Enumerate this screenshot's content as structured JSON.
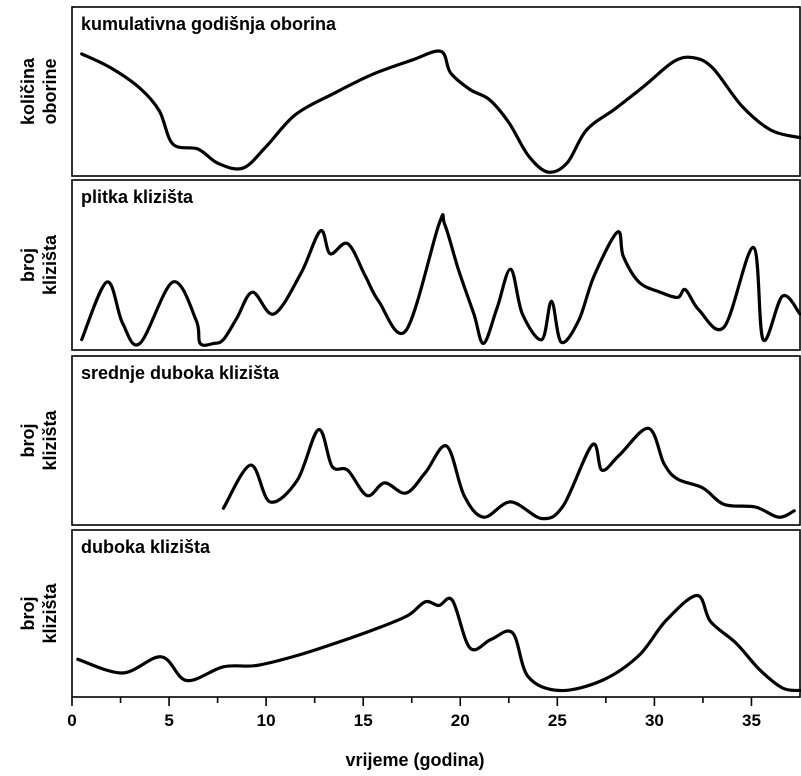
{
  "chart_data": [
    {
      "type": "line",
      "title": "kumulativna godišnja oborina",
      "ylabel": [
        "količina",
        "oborine"
      ],
      "xlim": [
        0,
        37.5
      ],
      "ylim": [
        0,
        1
      ],
      "x": [
        0.5,
        2,
        3.5,
        4.5,
        5.2,
        6.5,
        7.5,
        8.8,
        10,
        11.5,
        13.5,
        15.5,
        17.5,
        19,
        19.5,
        20.5,
        21.5,
        22.5,
        23.5,
        24.5,
        25.5,
        26.5,
        28,
        29.5,
        31,
        32,
        33,
        34.5,
        36,
        37.5
      ],
      "values": [
        0.93,
        0.82,
        0.66,
        0.48,
        0.22,
        0.18,
        0.07,
        0.03,
        0.2,
        0.45,
        0.62,
        0.77,
        0.88,
        0.95,
        0.78,
        0.65,
        0.57,
        0.39,
        0.13,
        0.0,
        0.07,
        0.33,
        0.5,
        0.68,
        0.87,
        0.9,
        0.82,
        0.52,
        0.33,
        0.27
      ]
    },
    {
      "type": "line",
      "title": "plitka klizišta",
      "ylabel": [
        "broj",
        "klizišta"
      ],
      "xlim": [
        0,
        37.5
      ],
      "ylim": [
        0,
        1
      ],
      "x": [
        0.5,
        1.8,
        2.6,
        3.5,
        5.2,
        6.4,
        6.6,
        7.3,
        7.8,
        8.5,
        9.3,
        10.4,
        11.8,
        12.8,
        13.3,
        14.2,
        15.1,
        15.8,
        17.2,
        18.9,
        19.2,
        19.9,
        20.7,
        21.2,
        21.9,
        22.6,
        23.2,
        24.2,
        24.7,
        25.2,
        26.1,
        26.9,
        28.1,
        28.4,
        29.2,
        30.3,
        31.2,
        31.6,
        32.3,
        33.6,
        35.1,
        35.6,
        36.6,
        37.5
      ],
      "values": [
        0.05,
        0.5,
        0.18,
        0.02,
        0.5,
        0.2,
        0.02,
        0.02,
        0.05,
        0.22,
        0.42,
        0.25,
        0.57,
        0.9,
        0.72,
        0.8,
        0.55,
        0.35,
        0.12,
        0.95,
        0.95,
        0.6,
        0.25,
        0.02,
        0.3,
        0.6,
        0.25,
        0.05,
        0.35,
        0.03,
        0.2,
        0.55,
        0.89,
        0.7,
        0.5,
        0.42,
        0.38,
        0.44,
        0.28,
        0.15,
        0.77,
        0.05,
        0.39,
        0.25
      ],
      "note": ""
    },
    {
      "type": "line",
      "title": "srednje duboka klizišta",
      "ylabel": [
        "broj",
        "klizišta"
      ],
      "xlim": [
        0,
        37.5
      ],
      "ylim": [
        0,
        1
      ],
      "x": [
        7.8,
        9.2,
        10.2,
        11.6,
        12.7,
        13.4,
        14.2,
        15.2,
        16.1,
        17.2,
        18.2,
        19.3,
        20.2,
        21.2,
        22.6,
        24.2,
        25.3,
        26.8,
        27.3,
        28.2,
        29.7,
        30.5,
        31.2,
        32.5,
        33.6,
        35.2,
        36.4,
        37.2
      ],
      "values": [
        0.1,
        0.44,
        0.15,
        0.32,
        0.72,
        0.43,
        0.4,
        0.2,
        0.3,
        0.22,
        0.38,
        0.59,
        0.2,
        0.03,
        0.15,
        0.02,
        0.12,
        0.6,
        0.4,
        0.52,
        0.73,
        0.45,
        0.33,
        0.26,
        0.13,
        0.11,
        0.03,
        0.08
      ]
    },
    {
      "type": "line",
      "title": "duboka klizišta",
      "ylabel": [
        "broj",
        "klizišta"
      ],
      "xlim": [
        0,
        37.5
      ],
      "ylim": [
        0,
        1
      ],
      "x": [
        0.3,
        2.6,
        4.6,
        5.9,
        7.8,
        9.5,
        11.6,
        13.6,
        15.6,
        17.3,
        18.2,
        18.9,
        19.6,
        20.5,
        21.6,
        22.7,
        23.5,
        25.1,
        27.3,
        29.2,
        30.6,
        32.2,
        32.9,
        34.2,
        35.4,
        36.6,
        37.5
      ],
      "values": [
        0.27,
        0.16,
        0.29,
        0.1,
        0.21,
        0.22,
        0.3,
        0.4,
        0.51,
        0.62,
        0.73,
        0.7,
        0.74,
        0.36,
        0.43,
        0.48,
        0.13,
        0.02,
        0.1,
        0.3,
        0.58,
        0.78,
        0.57,
        0.4,
        0.19,
        0.04,
        0.02
      ]
    }
  ],
  "x_axis": {
    "label": "vrijeme (godina)",
    "ticks": [
      0,
      5,
      10,
      15,
      20,
      25,
      30,
      35
    ],
    "minor_ticks": [
      2.5,
      7.5,
      12.5,
      17.5,
      22.5,
      27.5,
      32.5
    ]
  }
}
